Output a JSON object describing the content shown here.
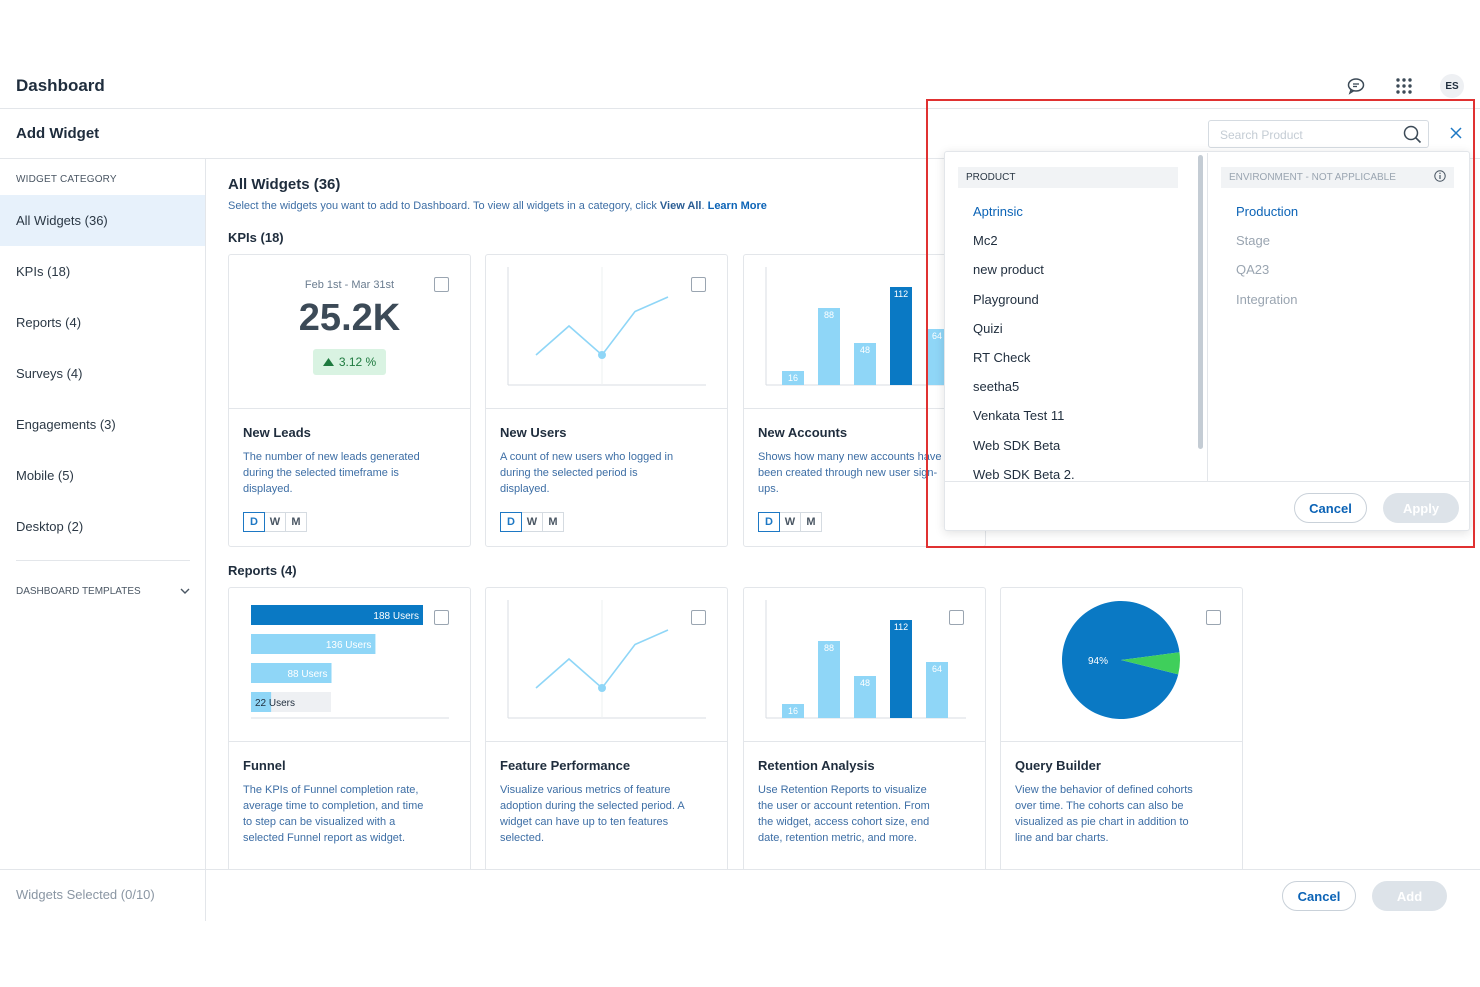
{
  "app": {
    "title": "Dashboard",
    "avatar_initials": "ES"
  },
  "icons": {
    "chat": "chat-bubble-icon",
    "apps": "apps-grid-icon",
    "search": "search-icon",
    "close": "close-icon",
    "info": "info-icon",
    "chevron": "chevron-down-icon",
    "arrow": "arrow-up-icon"
  },
  "colors": {
    "primary": "#0b63b6",
    "bar_dark": "#0a79c4",
    "bar_light": "#8fd6f7",
    "positive": "#1e7a3f",
    "highlight_border": "#e03131"
  },
  "subheader": {
    "title": "Add Widget"
  },
  "sidebar": {
    "category_header": "WIDGET CATEGORY",
    "categories": [
      {
        "label": "All Widgets (36)"
      },
      {
        "label": "KPIs (18)"
      },
      {
        "label": "Reports (4)"
      },
      {
        "label": "Surveys (4)"
      },
      {
        "label": "Engagements (3)"
      },
      {
        "label": "Mobile (5)"
      },
      {
        "label": "Desktop (2)"
      }
    ],
    "templates_label": "DASHBOARD TEMPLATES"
  },
  "main": {
    "heading": "All Widgets (36)",
    "subtitle_pre": "Select the widgets you want to add to Dashboard. To view all widgets in a category, click ",
    "view_all": "View All",
    "learn_more": "Learn More",
    "kpis_section": "KPIs (18)",
    "reports_section": "Reports (4)"
  },
  "kpi_cards": [
    {
      "name": "New Leads",
      "desc": "The number of new leads generated during the selected timeframe is displayed.",
      "date_range": "Feb 1st - Mar 31st",
      "value": "25.2K",
      "change": "3.12 %",
      "dwm": [
        "D",
        "W",
        "M"
      ]
    },
    {
      "name": "New Users",
      "desc": "A count of new users who logged in during the selected period is displayed.",
      "dwm": [
        "D",
        "W",
        "M"
      ]
    },
    {
      "name": "New Accounts",
      "desc": "Shows how many new accounts have been created through new user sign-ups.",
      "dwm": [
        "D",
        "W",
        "M"
      ]
    }
  ],
  "report_cards": [
    {
      "name": "Funnel",
      "desc": "The KPIs of Funnel completion rate, average time to completion, and time to step can be visualized with a selected Funnel report as widget."
    },
    {
      "name": "Feature Performance",
      "desc": "Visualize various metrics of feature adoption during the selected period. A widget can have up to ten features selected."
    },
    {
      "name": "Retention Analysis",
      "desc": "Use Retention Reports to visualize the user or account retention. From the widget, access cohort size, end date, retention metric, and more."
    },
    {
      "name": "Query Builder",
      "desc": "View the behavior of defined cohorts over time. The cohorts can also be visualized as pie chart in addition to line and bar charts."
    }
  ],
  "chart_data": [
    {
      "type": "line",
      "x": [
        1,
        2,
        3,
        4,
        5
      ],
      "values": [
        1,
        3,
        1,
        4,
        5
      ]
    },
    {
      "type": "bar",
      "categories": [
        "1",
        "2",
        "3",
        "4",
        "5"
      ],
      "values": [
        16,
        88,
        48,
        112,
        64
      ],
      "labels": [
        "16",
        "88",
        "48",
        "112",
        "64"
      ]
    },
    {
      "type": "bar",
      "orientation": "horizontal",
      "categories": [
        "188 Users",
        "136 Users",
        "88 Users",
        "22 Users"
      ],
      "values": [
        188,
        136,
        88,
        22
      ],
      "labels": [
        "188 Users",
        "136 Users",
        "88 Users",
        "22 Users"
      ]
    },
    {
      "type": "line",
      "x": [
        1,
        2,
        3,
        4,
        5
      ],
      "values": [
        1,
        3,
        1,
        4,
        5
      ]
    },
    {
      "type": "bar",
      "categories": [
        "1",
        "2",
        "3",
        "4",
        "5"
      ],
      "values": [
        16,
        88,
        48,
        112,
        64
      ],
      "labels": [
        "16",
        "88",
        "48",
        "112",
        "64"
      ]
    },
    {
      "type": "pie",
      "values": [
        94,
        6
      ],
      "labels": [
        "94%",
        ""
      ]
    }
  ],
  "footer": {
    "selected": "Widgets Selected (0/10)",
    "cancel": "Cancel",
    "add": "Add"
  },
  "dropdown": {
    "search_placeholder": "Search Product",
    "product_header": "PRODUCT",
    "products": [
      "Aptrinsic",
      "Mc2",
      "new product",
      "Playground",
      "Quizi",
      "RT Check",
      "seetha5",
      "Venkata Test 11",
      "Web SDK Beta",
      "Web SDK Beta 2."
    ],
    "environment_header": "ENVIRONMENT - NOT APPLICABLE",
    "environments": [
      "Production",
      "Stage",
      "QA23",
      "Integration"
    ],
    "cancel": "Cancel",
    "apply": "Apply"
  }
}
